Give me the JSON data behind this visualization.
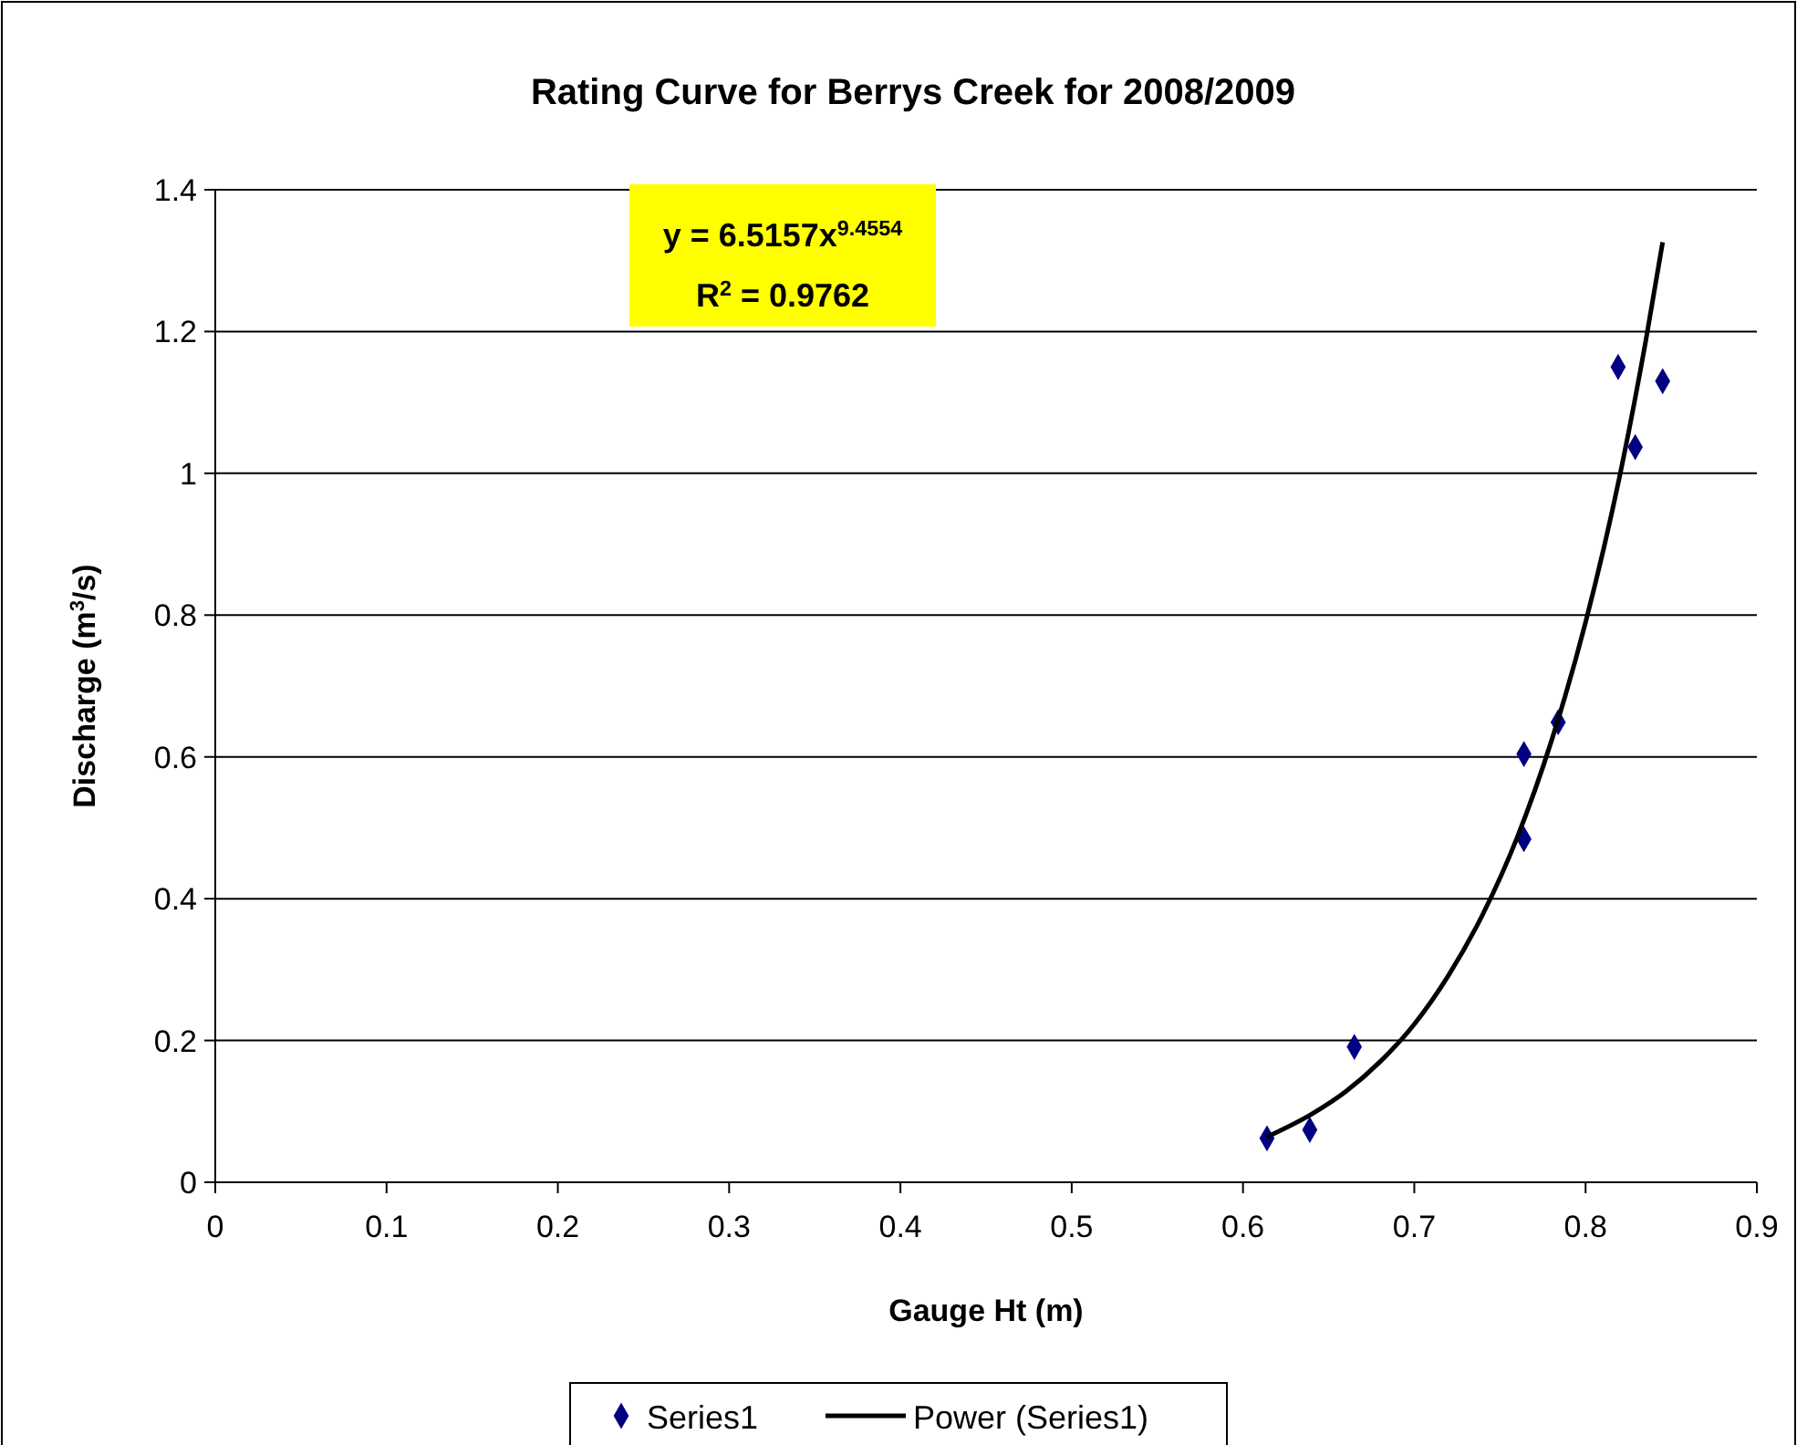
{
  "chart_data": {
    "type": "scatter",
    "title": "Rating Curve for Berrys Creek for 2008/2009",
    "xlabel": "Gauge Ht (m)",
    "ylabel": "Discharge (m$^{3}$/s)",
    "xlim": [
      0,
      0.9
    ],
    "xticks": [
      0,
      0.1,
      0.2,
      0.3,
      0.4,
      0.5,
      0.6,
      0.7,
      0.8,
      0.9
    ],
    "ylim": [
      0,
      1.4
    ],
    "yticks": [
      0,
      0.2,
      0.4,
      0.6,
      0.8,
      1,
      1.2,
      1.4
    ],
    "grid": "y",
    "legend": "bottom",
    "marker": "diamond",
    "series": [
      {
        "name": "Series1",
        "color": "#000080",
        "x": [
          0.614,
          0.639,
          0.665,
          0.764,
          0.764,
          0.784,
          0.819,
          0.829,
          0.845
        ],
        "values": [
          0.062,
          0.074,
          0.191,
          0.604,
          0.484,
          0.649,
          1.15,
          1.037,
          1.13
        ]
      },
      {
        "name": "Power (Series1)",
        "type": "line",
        "color": "#000000",
        "line_style": "solid",
        "marker": "none",
        "x": [
          0.614,
          0.64,
          0.66,
          0.68,
          0.7,
          0.72,
          0.74,
          0.76,
          0.78,
          0.8,
          0.82,
          0.835,
          0.845
        ],
        "values": [
          0.064,
          0.096,
          0.128,
          0.17,
          0.223,
          0.292,
          0.378,
          0.486,
          0.622,
          0.79,
          0.997,
          1.185,
          1.326
        ]
      }
    ],
    "annotations": [
      "y = 6.5157x$^{9.4554}$",
      "R$^{2}$ = 0.9762"
    ]
  }
}
